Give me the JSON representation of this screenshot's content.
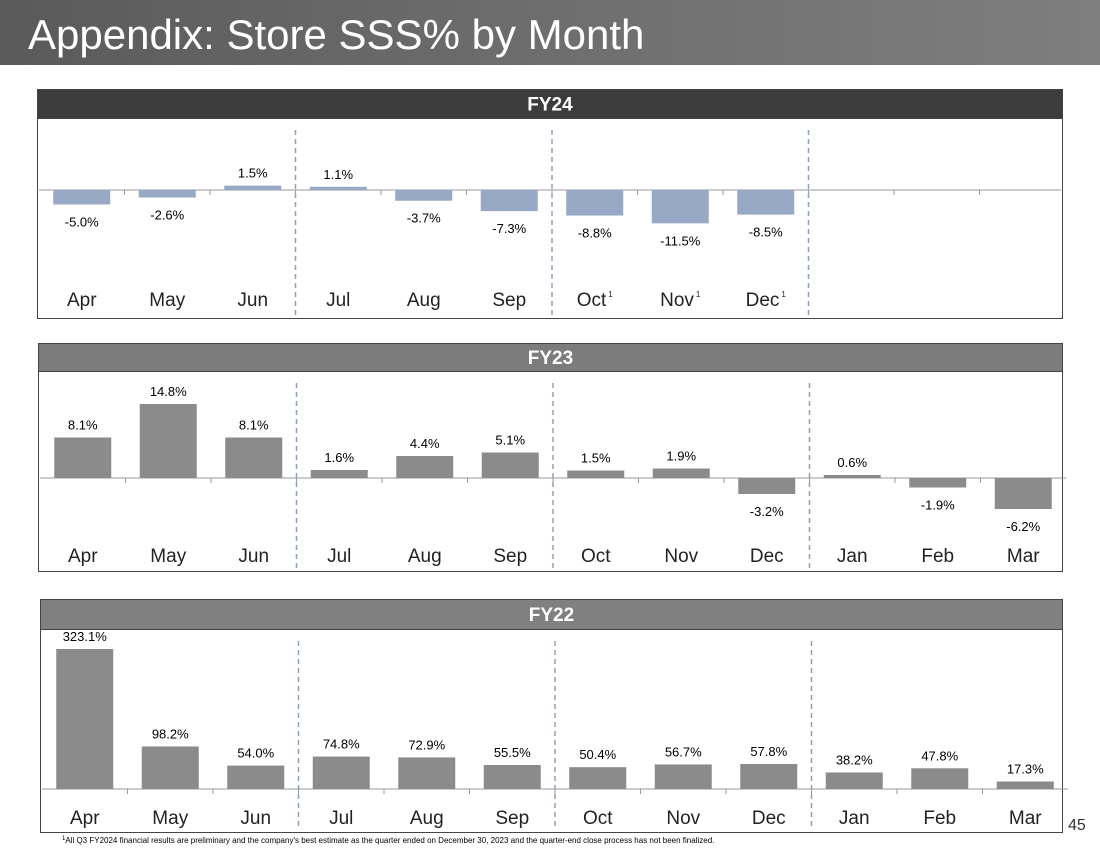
{
  "slide": {
    "title": "Appendix: Store SSS% by Month",
    "page_number": "45",
    "footnote_marker": "1",
    "footnote": "All Q3 FY2024 financial results are preliminary and the company's best estimate as the quarter ended on December 30, 2023 and the quarter-end close process has not been finalized."
  },
  "colors": {
    "fy24_header": "#3c3c3c",
    "fy23_header": "#7c7c7c",
    "fy22_header": "#808080",
    "fy24_bar": "#97a9c4",
    "gray_bar": "#8b8b8b",
    "divider": "#8ea0b8"
  },
  "chart_data": [
    {
      "type": "bar",
      "title": "FY24",
      "categories": [
        "Apr",
        "May",
        "Jun",
        "Jul",
        "Aug",
        "Sep",
        "Oct",
        "Nov",
        "Dec"
      ],
      "category_superscripts": [
        "",
        "",
        "",
        "",
        "",
        "",
        "1",
        "1",
        "1"
      ],
      "values": [
        -5.0,
        -2.6,
        1.5,
        1.1,
        -3.7,
        -7.3,
        -8.8,
        -11.5,
        -8.5
      ],
      "data_labels": [
        "-5.0%",
        "-2.6%",
        "1.5%",
        "1.1%",
        "-3.7%",
        "-7.3%",
        "-8.8%",
        "-11.5%",
        "-8.5%"
      ],
      "quarter_dividers_after": [
        3,
        6,
        9
      ]
    },
    {
      "type": "bar",
      "title": "FY23",
      "categories": [
        "Apr",
        "May",
        "Jun",
        "Jul",
        "Aug",
        "Sep",
        "Oct",
        "Nov",
        "Dec",
        "Jan",
        "Feb",
        "Mar"
      ],
      "values": [
        8.1,
        14.8,
        8.1,
        1.6,
        4.4,
        5.1,
        1.5,
        1.9,
        -3.2,
        0.6,
        -1.9,
        -6.2
      ],
      "data_labels": [
        "8.1%",
        "14.8%",
        "8.1%",
        "1.6%",
        "4.4%",
        "5.1%",
        "1.5%",
        "1.9%",
        "-3.2%",
        "0.6%",
        "-1.9%",
        "-6.2%"
      ],
      "quarter_dividers_after": [
        3,
        6,
        9
      ]
    },
    {
      "type": "bar",
      "title": "FY22",
      "categories": [
        "Apr",
        "May",
        "Jun",
        "Jul",
        "Aug",
        "Sep",
        "Oct",
        "Nov",
        "Dec",
        "Jan",
        "Feb",
        "Mar"
      ],
      "values": [
        323.1,
        98.2,
        54.0,
        74.8,
        72.9,
        55.5,
        50.4,
        56.7,
        57.8,
        38.2,
        47.8,
        17.3
      ],
      "data_labels": [
        "323.1%",
        "98.2%",
        "54.0%",
        "74.8%",
        "72.9%",
        "55.5%",
        "50.4%",
        "56.7%",
        "57.8%",
        "38.2%",
        "47.8%",
        "17.3%"
      ],
      "quarter_dividers_after": [
        3,
        6,
        9
      ]
    }
  ]
}
